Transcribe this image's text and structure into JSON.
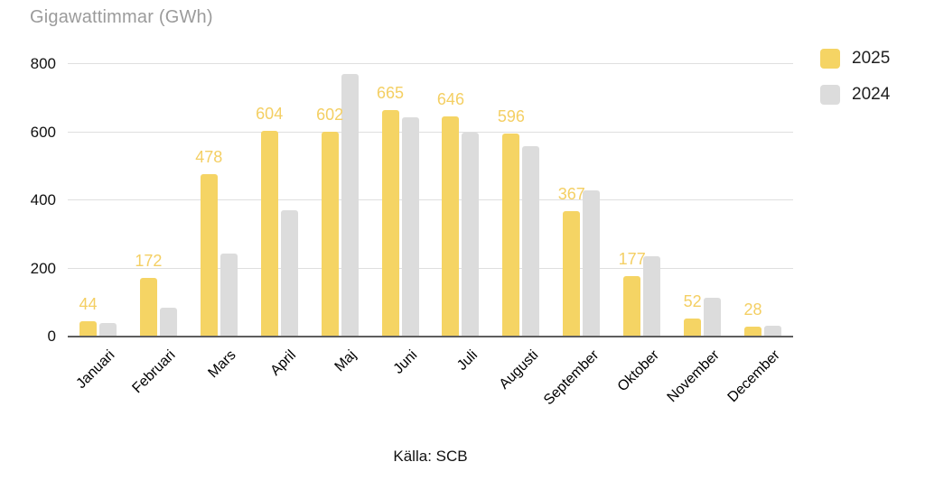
{
  "chart": {
    "title": "Gigawattimmar (GWh)",
    "source": "Källa: SCB"
  },
  "colors": {
    "background": "#FFFFFF",
    "title_text": "#9B9B9B",
    "axis_text": "#111111",
    "gridline": "#DFDFDF",
    "baseline": "#5E5E5E",
    "series_2025": "#F5D464",
    "series_2024": "#DCDCDC",
    "value_label": "#F4CF63"
  },
  "chart_data": {
    "type": "bar",
    "title": "Gigawattimmar (GWh)",
    "categories": [
      "Januari",
      "Februari",
      "Mars",
      "April",
      "Maj",
      "Juni",
      "Juli",
      "Augusti",
      "September",
      "Oktober",
      "November",
      "December"
    ],
    "series": [
      {
        "name": "2025",
        "color": "#F5D464",
        "values": [
          44,
          172,
          478,
          604,
          602,
          665,
          646,
          596,
          367,
          177,
          52,
          28
        ],
        "data_labels": true
      },
      {
        "name": "2024",
        "color": "#DCDCDC",
        "values": [
          40,
          85,
          243,
          370,
          770,
          645,
          600,
          560,
          430,
          235,
          115,
          32
        ],
        "data_labels": false
      }
    ],
    "y_axis": {
      "min": 0,
      "max": 800,
      "ticks": [
        0,
        200,
        400,
        600,
        800
      ]
    },
    "x_axis": {
      "label_rotation_deg": -45
    },
    "grid": true,
    "legend_position": "top-right",
    "caption": "Källa: SCB"
  }
}
